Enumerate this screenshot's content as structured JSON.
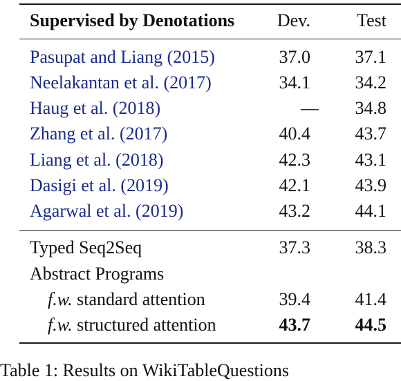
{
  "table": {
    "header": {
      "method": "Supervised by Denotations",
      "dev": "Dev.",
      "test": "Test"
    },
    "cited_rows": [
      {
        "author": "Pasupat and Liang (",
        "year": "2015",
        "close": ")",
        "dev": "37.0",
        "test": "37.1"
      },
      {
        "author": "Neelakantan et al. (",
        "year": "2017",
        "close": ")",
        "dev": "34.1",
        "test": "34.2"
      },
      {
        "author": "Haug et al. (",
        "year": "2018",
        "close": ")",
        "dev": "—",
        "test": "34.8"
      },
      {
        "author": "Zhang et al. (",
        "year": "2017",
        "close": ")",
        "dev": "40.4",
        "test": "43.7"
      },
      {
        "author": "Liang et al. (",
        "year": "2018",
        "close": ")",
        "dev": "42.3",
        "test": "43.1"
      },
      {
        "author": "Dasigi et al. (",
        "year": "2019",
        "close": ")",
        "dev": "42.1",
        "test": "43.9"
      },
      {
        "author": "Agarwal et al. (",
        "year": "2019",
        "close": ")",
        "dev": "43.2",
        "test": "44.1"
      }
    ],
    "ours": {
      "typed_seq2seq": {
        "label": "Typed Seq2Seq",
        "dev": "37.3",
        "test": "38.3"
      },
      "abstract_programs": {
        "label": "Abstract Programs"
      },
      "standard": {
        "prefix": "f.w.",
        "label": " standard attention",
        "dev": "39.4",
        "test": "41.4"
      },
      "structured": {
        "prefix": "f.w.",
        "label": " structured attention",
        "dev": "43.7",
        "test": "44.5"
      }
    }
  },
  "caption": "Table 1: Results on WikiTableQuestions"
}
